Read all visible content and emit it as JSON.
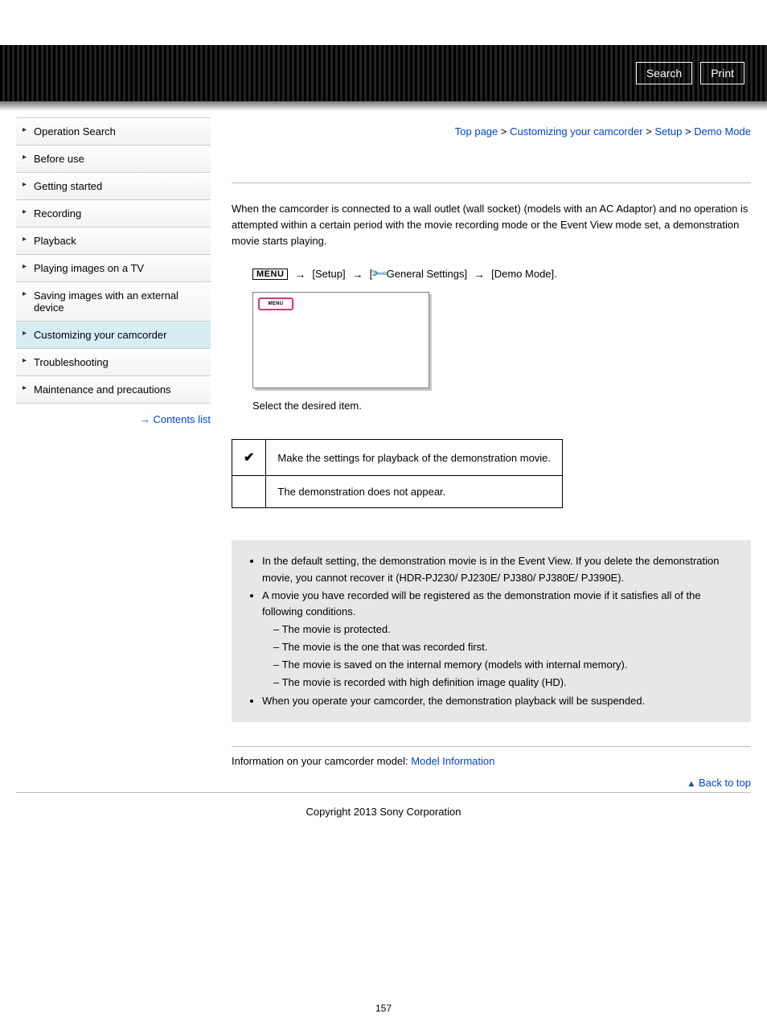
{
  "topbar": {
    "search": "Search",
    "print": "Print"
  },
  "breadcrumb": {
    "items": [
      "Top page",
      "Customizing your camcorder",
      "Setup",
      "Demo Mode"
    ],
    "sep": " > "
  },
  "sidebar": {
    "items": [
      "Operation Search",
      "Before use",
      "Getting started",
      "Recording",
      "Playback",
      "Playing images on a TV",
      "Saving images with an external device",
      "Customizing your camcorder",
      "Troubleshooting",
      "Maintenance and precautions"
    ],
    "active_index": 7,
    "contents_link": "Contents list"
  },
  "intro": "When the camcorder is connected to a wall outlet (wall socket) (models with an AC Adaptor) and no operation is attempted within a certain period with the movie recording mode or the Event View mode set, a demonstration movie starts playing.",
  "path": {
    "menu": "MENU",
    "s1": "[Setup]",
    "s2_prefix": "[",
    "s2_suffix": "General Settings]",
    "s3": "[Demo Mode]."
  },
  "screen_badge": "MENU",
  "select_text": "Select the desired item.",
  "options": [
    {
      "checked": true,
      "text": "Make the settings for playback of the demonstration movie."
    },
    {
      "checked": false,
      "text": "The demonstration does not appear."
    }
  ],
  "notes": {
    "b1": "In the default setting, the demonstration movie is in the Event View. If you delete the demonstration movie, you cannot recover it (HDR-PJ230/ PJ230E/ PJ380/ PJ380E/ PJ390E).",
    "b2": "A movie you have recorded will be registered as the demonstration movie if it satisfies all of the following conditions.",
    "sub": [
      "The movie is protected.",
      "The movie is the one that was recorded first.",
      "The movie is saved on the internal memory (models with internal memory).",
      "The movie is recorded with high definition image quality (HD)."
    ],
    "b3": "When you operate your camcorder, the demonstration playback will be suspended."
  },
  "model": {
    "label": "Information on your camcorder model: ",
    "link": "Model Information"
  },
  "backtop": "Back to top",
  "copyright": "Copyright 2013 Sony Corporation",
  "page_number": "157"
}
